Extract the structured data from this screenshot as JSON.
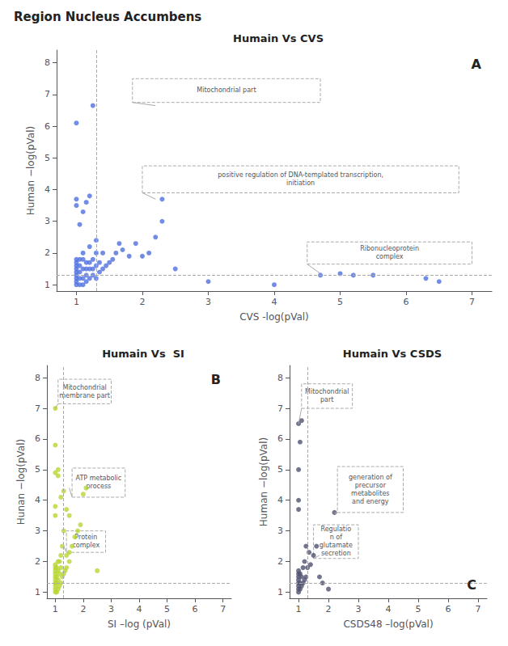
{
  "title": "Region Nucleus Accumbens",
  "chart_data": [
    {
      "type": "scatter",
      "title": "Humain Vs CVS",
      "label": "A",
      "xlabel": "CVS -log(pVal)",
      "ylabel": "Human −log(pVal)",
      "xlim": [
        0.7,
        7.3
      ],
      "ylim": [
        0.8,
        8.4
      ],
      "xticks": [
        1,
        2,
        3,
        4,
        5,
        6,
        7
      ],
      "yticks": [
        1,
        2,
        3,
        4,
        5,
        6,
        7,
        8
      ],
      "grid": false,
      "hline": 1.3,
      "vline": 1.3,
      "x": [
        1.0,
        1.0,
        1.0,
        1.0,
        1.0,
        1.0,
        1.0,
        1.0,
        1.0,
        1.05,
        1.05,
        1.05,
        1.05,
        1.05,
        1.1,
        1.1,
        1.1,
        1.1,
        1.1,
        1.15,
        1.15,
        1.15,
        1.15,
        1.2,
        1.2,
        1.2,
        1.2,
        1.25,
        1.25,
        1.25,
        1.3,
        1.3,
        1.3,
        1.3,
        1.35,
        1.35,
        1.4,
        1.4,
        1.45,
        1.5,
        1.55,
        1.6,
        1.65,
        1.7,
        1.8,
        1.9,
        2.0,
        2.1,
        2.2,
        2.3,
        2.5,
        3.0,
        4.0,
        2.3,
        4.7,
        5.0,
        5.2,
        5.5,
        6.3,
        6.5,
        1.0,
        1.0,
        1.0,
        1.05,
        1.1,
        1.15,
        1.2,
        1.25
      ],
      "values": [
        1.0,
        1.1,
        1.2,
        1.3,
        1.4,
        1.5,
        1.6,
        1.7,
        1.8,
        1.0,
        1.2,
        1.4,
        1.6,
        1.8,
        1.0,
        1.2,
        1.5,
        1.8,
        2.0,
        1.1,
        1.3,
        1.5,
        1.7,
        1.2,
        1.5,
        1.7,
        2.2,
        1.3,
        1.5,
        1.8,
        1.2,
        1.6,
        2.0,
        2.4,
        1.4,
        1.7,
        1.5,
        2.0,
        1.6,
        1.7,
        1.8,
        2.0,
        2.3,
        2.1,
        1.9,
        2.3,
        1.9,
        2.0,
        2.5,
        3.0,
        1.5,
        1.1,
        1.0,
        3.7,
        1.3,
        1.35,
        1.3,
        1.3,
        1.2,
        1.1,
        3.5,
        3.7,
        6.1,
        2.9,
        3.3,
        3.6,
        3.8,
        6.65
      ],
      "annotations": [
        {
          "text": "Mitochondrial part",
          "x": 2.2,
          "y": 6.65,
          "box": [
            1.85,
            6.75,
            4.7,
            7.5
          ]
        },
        {
          "text": "positive regulation of DNA-templated transcription,\ninitiation",
          "x": 2.2,
          "y": 3.7,
          "box": [
            2.0,
            3.9,
            6.8,
            4.75
          ]
        },
        {
          "text": "Ribonucleoprotein\ncomplex",
          "x": 4.7,
          "y": 1.35,
          "box": [
            4.5,
            1.65,
            7.0,
            2.35
          ]
        }
      ]
    },
    {
      "type": "scatter",
      "title": "Humain Vs  SI",
      "label": "B",
      "xlabel": "SI –log (pVal)",
      "ylabel": "Hunan −log(pVal)",
      "xlim": [
        0.7,
        7.3
      ],
      "ylim": [
        0.8,
        8.4
      ],
      "xticks": [
        1,
        2,
        3,
        4,
        5,
        6,
        7
      ],
      "yticks": [
        1,
        2,
        3,
        4,
        5,
        6,
        7,
        8
      ],
      "grid": false,
      "hline": 1.3,
      "vline": 1.3,
      "x": [
        1.0,
        1.0,
        1.0,
        1.0,
        1.0,
        1.0,
        1.0,
        1.0,
        1.0,
        1.0,
        1.05,
        1.05,
        1.05,
        1.05,
        1.1,
        1.1,
        1.1,
        1.1,
        1.15,
        1.15,
        1.15,
        1.2,
        1.2,
        1.2,
        1.25,
        1.25,
        1.3,
        1.3,
        1.35,
        1.4,
        1.4,
        1.5,
        1.5,
        1.6,
        1.7,
        1.8,
        1.9,
        2.0,
        2.1,
        2.5,
        1.0,
        1.0,
        1.2,
        1.3,
        1.4,
        1.5,
        1.0,
        1.0,
        1.0,
        1.1,
        1.1
      ],
      "values": [
        1.0,
        1.1,
        1.2,
        1.3,
        1.4,
        1.5,
        1.6,
        1.7,
        1.8,
        1.9,
        1.0,
        1.3,
        1.5,
        1.8,
        1.1,
        1.4,
        1.7,
        2.0,
        1.2,
        1.6,
        2.0,
        1.3,
        1.8,
        2.2,
        1.5,
        2.5,
        1.6,
        3.0,
        1.7,
        1.8,
        2.2,
        2.0,
        3.5,
        2.5,
        2.8,
        3.0,
        3.2,
        4.2,
        4.4,
        1.7,
        3.5,
        3.8,
        4.1,
        4.3,
        3.7,
        2.3,
        4.9,
        5.8,
        7.0,
        5.0,
        4.8
      ],
      "annotations": [
        {
          "text": "Mitochondrial\nmembrane part",
          "x": 1.0,
          "y": 7.0,
          "box": [
            1.1,
            7.15,
            3.0,
            7.95
          ]
        },
        {
          "text": "ATP metabolic\nprocess",
          "x": 1.5,
          "y": 4.4,
          "box": [
            1.6,
            4.1,
            3.5,
            5.05
          ]
        },
        {
          "text": "Protein\ncomplex",
          "x": 1.3,
          "y": 2.5,
          "box": [
            1.4,
            2.3,
            2.8,
            3.0
          ]
        }
      ]
    },
    {
      "type": "scatter",
      "title": "Humain Vs CSDS",
      "label": "C",
      "xlabel": "CSDS48 –log(pVal)",
      "ylabel": "Human −log(pVal)",
      "xlim": [
        0.7,
        7.3
      ],
      "ylim": [
        0.8,
        8.4
      ],
      "xticks": [
        1,
        2,
        3,
        4,
        5,
        6,
        7
      ],
      "yticks": [
        1,
        2,
        3,
        4,
        5,
        6,
        7,
        8
      ],
      "grid": false,
      "hline": 1.3,
      "vline": 1.3,
      "x": [
        1.0,
        1.0,
        1.0,
        1.0,
        1.0,
        1.0,
        1.0,
        1.0,
        1.05,
        1.05,
        1.05,
        1.1,
        1.1,
        1.15,
        1.15,
        1.2,
        1.2,
        1.25,
        1.25,
        1.3,
        1.35,
        1.4,
        1.5,
        1.6,
        1.7,
        1.8,
        2.0,
        2.2,
        1.0,
        1.0,
        1.0,
        1.0,
        1.05,
        1.1
      ],
      "values": [
        1.0,
        1.1,
        1.2,
        1.3,
        1.4,
        1.5,
        1.6,
        1.7,
        1.1,
        1.3,
        1.6,
        1.2,
        1.5,
        1.3,
        1.8,
        1.4,
        2.0,
        1.5,
        2.5,
        1.8,
        2.3,
        1.9,
        2.2,
        2.5,
        1.5,
        1.3,
        1.1,
        3.6,
        3.7,
        4.0,
        5.0,
        6.5,
        5.9,
        6.6
      ],
      "annotations": [
        {
          "text": "Mitochondrial\npart",
          "x": 1.0,
          "y": 6.5,
          "box": [
            1.1,
            7.0,
            2.8,
            7.8
          ]
        },
        {
          "text": "generation of\nprecursor\nmetabolites\nand energy",
          "x": 2.2,
          "y": 3.6,
          "box": [
            2.3,
            3.6,
            4.5,
            5.1
          ]
        },
        {
          "text": "Regulatio\nn of\nglutamate\nsecretion",
          "x": 1.7,
          "y": 2.2,
          "box": [
            1.5,
            2.1,
            3.0,
            3.2
          ]
        }
      ]
    }
  ]
}
